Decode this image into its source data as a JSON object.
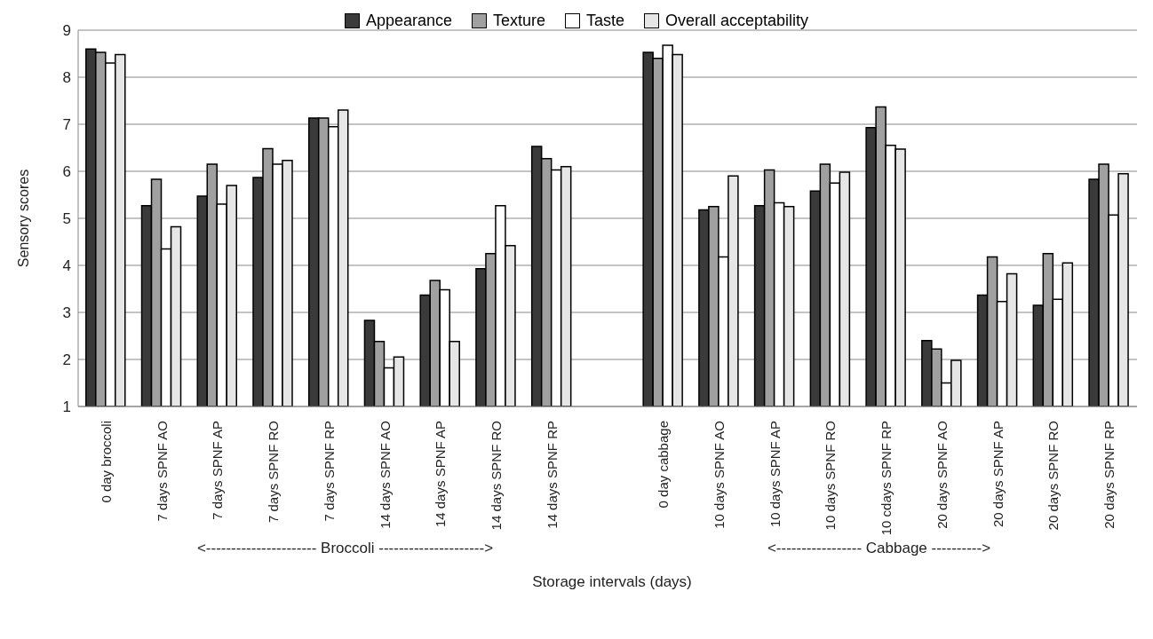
{
  "chart_data": {
    "type": "bar",
    "xlabel": "Storage intervals (days)",
    "ylabel": "Sensory scores",
    "categories": [
      "0 day broccoli",
      "7 days SPNF AO",
      "7 days SPNF AP",
      "7 days SPNF RO",
      "7 days SPNF RP",
      "14 days SPNF AO",
      "14 days SPNF AP",
      "14 days SPNF RO",
      "14 days SPNF RP",
      null,
      "0 day cabbage",
      "10 days SPNF AO",
      "10 days SPNF AP",
      "10 days SPNF RO",
      "10 cdays SPNF RP",
      "20 days SPNF AO",
      "20 days SPNF AP",
      "20 days SPNF RO",
      "20 days SPNF RP"
    ],
    "series": [
      {
        "name": "Appearance",
        "color": "#3a3a3a",
        "values": [
          8.6,
          5.27,
          5.47,
          5.87,
          7.13,
          2.83,
          3.37,
          3.93,
          6.53,
          null,
          8.53,
          5.18,
          5.27,
          5.58,
          6.93,
          2.4,
          3.37,
          3.15,
          5.83
        ]
      },
      {
        "name": "Texture",
        "color": "#a0a0a0",
        "values": [
          8.53,
          5.83,
          6.15,
          6.48,
          7.13,
          2.38,
          3.68,
          4.25,
          6.27,
          null,
          8.4,
          5.25,
          6.03,
          6.15,
          7.37,
          2.22,
          4.18,
          4.25,
          6.15
        ]
      },
      {
        "name": "Taste",
        "color": "#ffffff",
        "values": [
          8.3,
          4.35,
          5.3,
          6.15,
          6.95,
          1.82,
          3.48,
          5.27,
          6.03,
          null,
          8.68,
          4.18,
          5.33,
          5.75,
          6.55,
          1.5,
          3.23,
          3.28,
          5.07
        ]
      },
      {
        "name": "Overall acceptability",
        "color": "#e6e6e6",
        "values": [
          8.48,
          4.82,
          5.7,
          6.23,
          7.3,
          2.05,
          2.38,
          4.42,
          6.1,
          null,
          8.48,
          5.9,
          5.25,
          5.98,
          6.47,
          1.98,
          3.82,
          4.05,
          5.95
        ]
      }
    ],
    "ylim": [
      1,
      9
    ],
    "yticks": [
      1,
      2,
      3,
      4,
      5,
      6,
      7,
      8,
      9
    ],
    "grid": "y",
    "legend": "top",
    "annotations": [
      "<---------------------- Broccoli --------------------->",
      "<----------------- Cabbage ---------->"
    ]
  }
}
